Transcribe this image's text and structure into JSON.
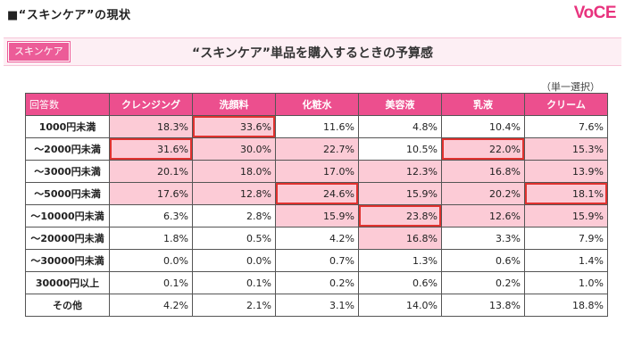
{
  "page": {
    "title": "■“スキンケア”の現状",
    "logo": "VoCE",
    "tag": "スキンケア",
    "section_title": "“スキンケア”単品を購入するときの予算感",
    "note": "（単一選択）"
  },
  "chart_data": {
    "type": "table",
    "title": "“スキンケア”単品を購入するときの予算感",
    "corner_label": "回答数",
    "columns": [
      "クレンジング",
      "洗顔料",
      "化粧水",
      "美容液",
      "乳液",
      "クリーム"
    ],
    "rows": [
      {
        "label": "1000円未満",
        "values": [
          "18.3%",
          "33.6%",
          "11.6%",
          "4.8%",
          "10.4%",
          "7.6%"
        ]
      },
      {
        "label": "～2000円未満",
        "values": [
          "31.6%",
          "30.0%",
          "22.7%",
          "10.5%",
          "22.0%",
          "15.3%"
        ]
      },
      {
        "label": "～3000円未満",
        "values": [
          "20.1%",
          "18.0%",
          "17.0%",
          "12.3%",
          "16.8%",
          "13.9%"
        ]
      },
      {
        "label": "～5000円未満",
        "values": [
          "17.6%",
          "12.8%",
          "24.6%",
          "15.9%",
          "20.2%",
          "18.1%"
        ]
      },
      {
        "label": "～10000円未満",
        "values": [
          "6.3%",
          "2.8%",
          "15.9%",
          "23.8%",
          "12.6%",
          "15.9%"
        ]
      },
      {
        "label": "～20000円未満",
        "values": [
          "1.8%",
          "0.5%",
          "4.2%",
          "16.8%",
          "3.3%",
          "7.9%"
        ]
      },
      {
        "label": "～30000円未満",
        "values": [
          "0.0%",
          "0.0%",
          "0.7%",
          "1.3%",
          "0.6%",
          "1.4%"
        ]
      },
      {
        "label": "30000円以上",
        "values": [
          "0.1%",
          "0.1%",
          "0.2%",
          "0.6%",
          "0.2%",
          "1.0%"
        ]
      },
      {
        "label": "その他",
        "values": [
          "4.2%",
          "2.1%",
          "3.1%",
          "14.0%",
          "13.8%",
          "18.8%"
        ]
      }
    ],
    "highlighted": [
      [
        true,
        true,
        false,
        false,
        false,
        false
      ],
      [
        true,
        true,
        true,
        false,
        true,
        true
      ],
      [
        true,
        true,
        true,
        true,
        true,
        true
      ],
      [
        true,
        true,
        true,
        true,
        true,
        true
      ],
      [
        false,
        false,
        true,
        true,
        true,
        true
      ],
      [
        false,
        false,
        false,
        true,
        false,
        false
      ],
      [
        false,
        false,
        false,
        false,
        false,
        false
      ],
      [
        false,
        false,
        false,
        false,
        false,
        false
      ],
      [
        false,
        false,
        false,
        false,
        false,
        false
      ]
    ],
    "boxed": [
      [
        false,
        true,
        false,
        false,
        false,
        false
      ],
      [
        true,
        false,
        false,
        false,
        true,
        false
      ],
      [
        false,
        false,
        false,
        false,
        false,
        false
      ],
      [
        false,
        false,
        true,
        false,
        false,
        true
      ],
      [
        false,
        false,
        false,
        true,
        false,
        false
      ],
      [
        false,
        false,
        false,
        false,
        false,
        false
      ],
      [
        false,
        false,
        false,
        false,
        false,
        false
      ],
      [
        false,
        false,
        false,
        false,
        false,
        false
      ],
      [
        false,
        false,
        false,
        false,
        false,
        false
      ]
    ],
    "colors": {
      "header": "#ec4f8e",
      "highlight": "#fccbd6",
      "box": "#e0322f"
    }
  }
}
